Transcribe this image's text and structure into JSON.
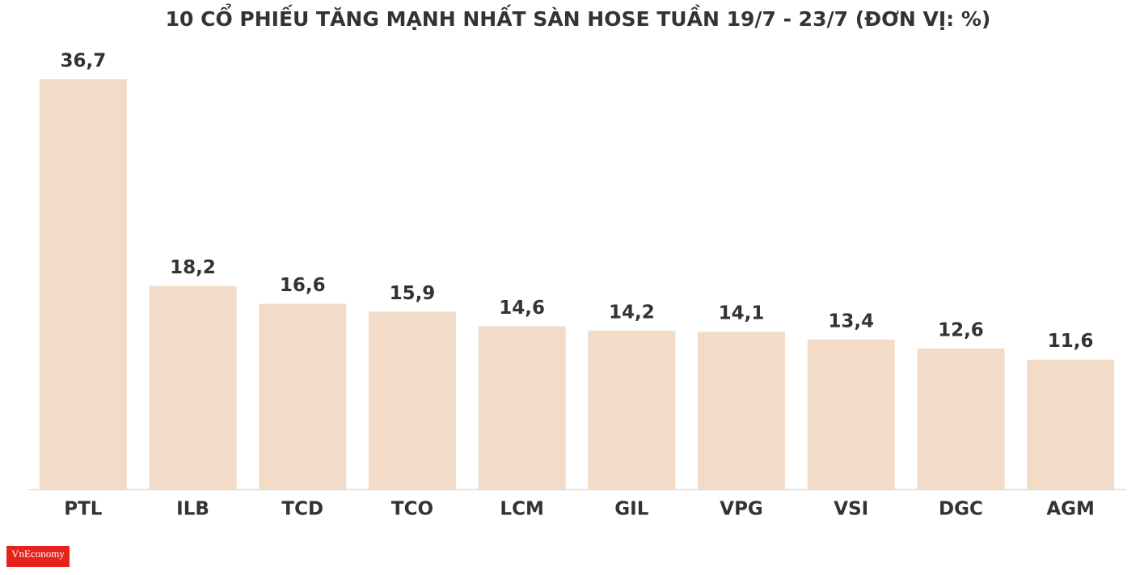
{
  "chart_data": {
    "type": "bar",
    "title": "10 CỔ PHIẾU TĂNG MẠNH NHẤT SÀN HOSE TUẦN 19/7 - 23/7 (ĐƠN VỊ: %)",
    "categories": [
      "PTL",
      "ILB",
      "TCD",
      "TCO",
      "LCM",
      "GIL",
      "VPG",
      "VSI",
      "DGC",
      "AGM"
    ],
    "values": [
      36.7,
      18.2,
      16.6,
      15.9,
      14.6,
      14.2,
      14.1,
      13.4,
      12.6,
      11.6
    ],
    "value_labels": [
      "36,7",
      "18,2",
      "16,6",
      "15,9",
      "14,6",
      "14,2",
      "14,1",
      "13,4",
      "12,6",
      "11,6"
    ],
    "color": "#f2dcc7",
    "logo": "VnEconomy"
  }
}
